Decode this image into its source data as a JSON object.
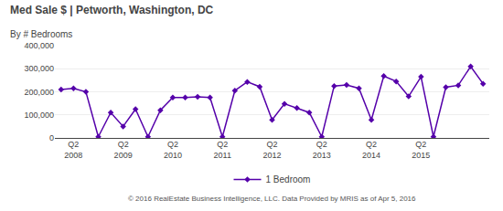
{
  "chart_data": {
    "type": "line",
    "title": "Med Sale $ | Petworth, Washington, DC",
    "subtitle": "By # Bedrooms",
    "annotations": [
      "© 2016 RealEstate Business Intelligence, LLC. Data Provided by MRIS as of Apr 5, 2016"
    ],
    "categories": [
      null,
      "Q2\n2008",
      null,
      null,
      null,
      "Q2\n2009",
      null,
      null,
      null,
      "Q2\n2010",
      null,
      null,
      null,
      "Q2\n2011",
      null,
      null,
      null,
      "Q2\n2012",
      null,
      null,
      null,
      "Q2\n2013",
      null,
      null,
      null,
      "Q2\n2014",
      null,
      null,
      null,
      "Q2\n2015",
      null,
      null,
      null,
      null,
      null
    ],
    "series": [
      {
        "name": "1 Bedroom",
        "color": "#5500aa",
        "marker": "diamond",
        "values": [
          210000,
          215000,
          200000,
          5000,
          110000,
          50000,
          125000,
          5000,
          120000,
          175000,
          175000,
          178000,
          175000,
          5000,
          205000,
          243000,
          222000,
          78000,
          148000,
          130000,
          110000,
          5000,
          225000,
          230000,
          215000,
          78000,
          268000,
          245000,
          180000,
          265000,
          5000,
          220000,
          228000,
          310000,
          235000
        ]
      }
    ],
    "ylim": [
      0,
      400000
    ],
    "yticks": [
      0,
      {
        "value": 100000,
        "label": "100,000"
      },
      {
        "value": 200000,
        "label": "200,000"
      },
      {
        "value": 300000,
        "label": "300,000"
      },
      {
        "value": 400000,
        "label": "400,000"
      }
    ],
    "grid": true,
    "legend": "bottom"
  }
}
